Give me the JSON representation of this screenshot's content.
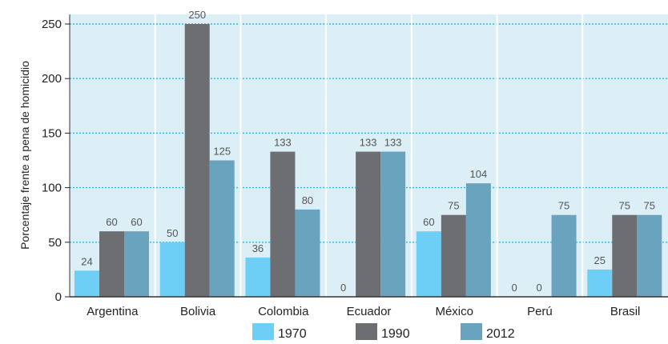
{
  "colors": {
    "plot_background": "#dceef6",
    "gridline": "#33b5d9",
    "separator": "#ffffff"
  },
  "chart_data": {
    "type": "bar",
    "title": "",
    "xlabel": "",
    "ylabel": "Porcentaje frente a pena de homicidio",
    "categories": [
      "Argentina",
      "Bolivia",
      "Colombia",
      "Ecuador",
      "México",
      "Perú",
      "Brasil"
    ],
    "series": [
      {
        "name": "1970",
        "color": "#6dcff6",
        "values": [
          24,
          50,
          36,
          0,
          60,
          0,
          25
        ]
      },
      {
        "name": "1990",
        "color": "#6d6e71",
        "values": [
          60,
          250,
          133,
          133,
          75,
          0,
          75
        ]
      },
      {
        "name": "2012",
        "color": "#6aa3bd",
        "values": [
          60,
          125,
          80,
          133,
          104,
          75,
          75
        ]
      }
    ],
    "ylim": [
      0,
      250
    ],
    "yticks": [
      0,
      50,
      100,
      150,
      200,
      250
    ],
    "grid": true,
    "legend_position": "bottom"
  }
}
